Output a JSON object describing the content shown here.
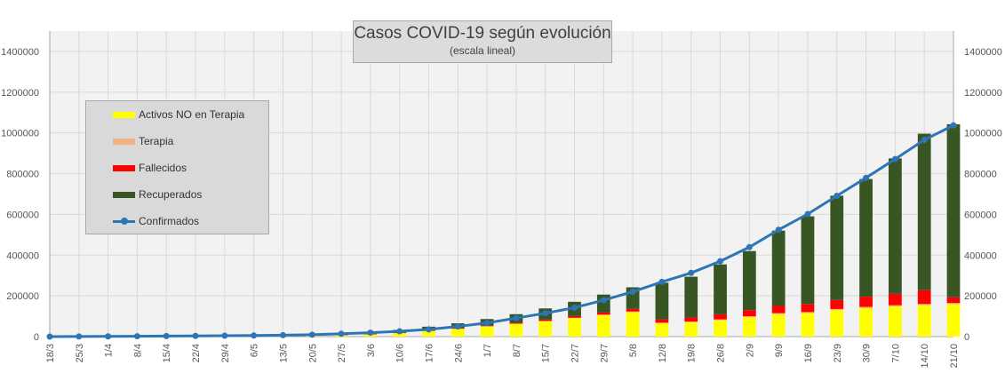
{
  "chart_data": {
    "type": "bar",
    "title": "Casos COVID-19 según evolución",
    "subtitle": "(escala lineal)",
    "xlabel": "",
    "ylabel": "",
    "ylim": [
      0,
      1500000
    ],
    "yticks": [
      0,
      200000,
      400000,
      600000,
      800000,
      1000000,
      1200000,
      1400000
    ],
    "ytick_labels": [
      "0",
      "200000",
      "400000",
      "600000",
      "800000",
      "1000000",
      "1200000",
      "1400000"
    ],
    "secondary_axis": true,
    "grid": true,
    "legend_placement": "top-left",
    "date_labels": [
      "18/3",
      "25/3",
      "1/4",
      "8/4",
      "15/4",
      "22/4",
      "29/4",
      "6/5",
      "13/5",
      "20/5",
      "27/5",
      "3/6",
      "10/6",
      "17/6",
      "24/6",
      "1/7",
      "8/7",
      "15/7",
      "22/7",
      "29/7",
      "5/8",
      "12/8",
      "19/8",
      "26/8",
      "2/9",
      "9/9",
      "16/9",
      "23/9",
      "30/9",
      "7/10",
      "14/10",
      "21/10"
    ],
    "series": [
      {
        "name": "Activos NO en Terapia",
        "kind": "bar",
        "color": "#ffff00",
        "values": [
          0,
          0,
          1000,
          1500,
          2000,
          3000,
          2000,
          3000,
          4000,
          6000,
          8000,
          12000,
          18000,
          28000,
          38000,
          50000,
          62000,
          75000,
          90000,
          105000,
          120000,
          65000,
          70000,
          80000,
          95000,
          110000,
          115000,
          130000,
          140000,
          148000,
          155000,
          160000
        ]
      },
      {
        "name": "Terapia",
        "kind": "bar",
        "color": "#f4b183",
        "values": [
          0,
          0,
          100,
          200,
          300,
          300,
          300,
          300,
          300,
          300,
          400,
          500,
          600,
          800,
          1000,
          1300,
          1600,
          1900,
          2300,
          2700,
          3000,
          3500,
          4000,
          4500,
          5000,
          5300,
          5500,
          5600,
          5700,
          5800,
          5000,
          4900
        ]
      },
      {
        "name": "Fallecidos",
        "kind": "bar",
        "color": "#ff0000",
        "values": [
          0,
          0,
          30,
          70,
          120,
          200,
          260,
          320,
          380,
          450,
          600,
          900,
          1300,
          1800,
          2200,
          2800,
          4500,
          6500,
          8500,
          10500,
          13000,
          16000,
          20000,
          25000,
          30000,
          35000,
          40000,
          44000,
          50000,
          56000,
          68000,
          27600
        ]
      },
      {
        "name": "Recuperados",
        "kind": "bar",
        "color": "#375623",
        "values": [
          0,
          0,
          100,
          300,
          800,
          1200,
          1600,
          2500,
          3500,
          5000,
          7000,
          10000,
          13000,
          18000,
          24000,
          32000,
          42000,
          55000,
          70000,
          88000,
          106000,
          180000,
          200000,
          245000,
          290000,
          370000,
          430000,
          512000,
          578000,
          665000,
          768000,
          850000
        ]
      },
      {
        "name": "Confirmados",
        "kind": "line",
        "color": "#2e75b6",
        "values": [
          79,
          589,
          1054,
          1894,
          2571,
          3288,
          4285,
          5208,
          6879,
          9283,
          13933,
          19268,
          25987,
          35552,
          49851,
          67197,
          90693,
          114783,
          141900,
          178996,
          220682,
          268574,
          312659,
          370188,
          439172,
          524198,
          601713,
          691235,
          779689,
          871468,
          965609,
          1037325
        ]
      }
    ]
  },
  "legend": {
    "activos_label": "Activos NO en Terapia",
    "terapia_label": "Terapia",
    "fallecidos_label": "Fallecidos",
    "recuperados_label": "Recuperados",
    "confirmados_label": "Confirmados"
  }
}
